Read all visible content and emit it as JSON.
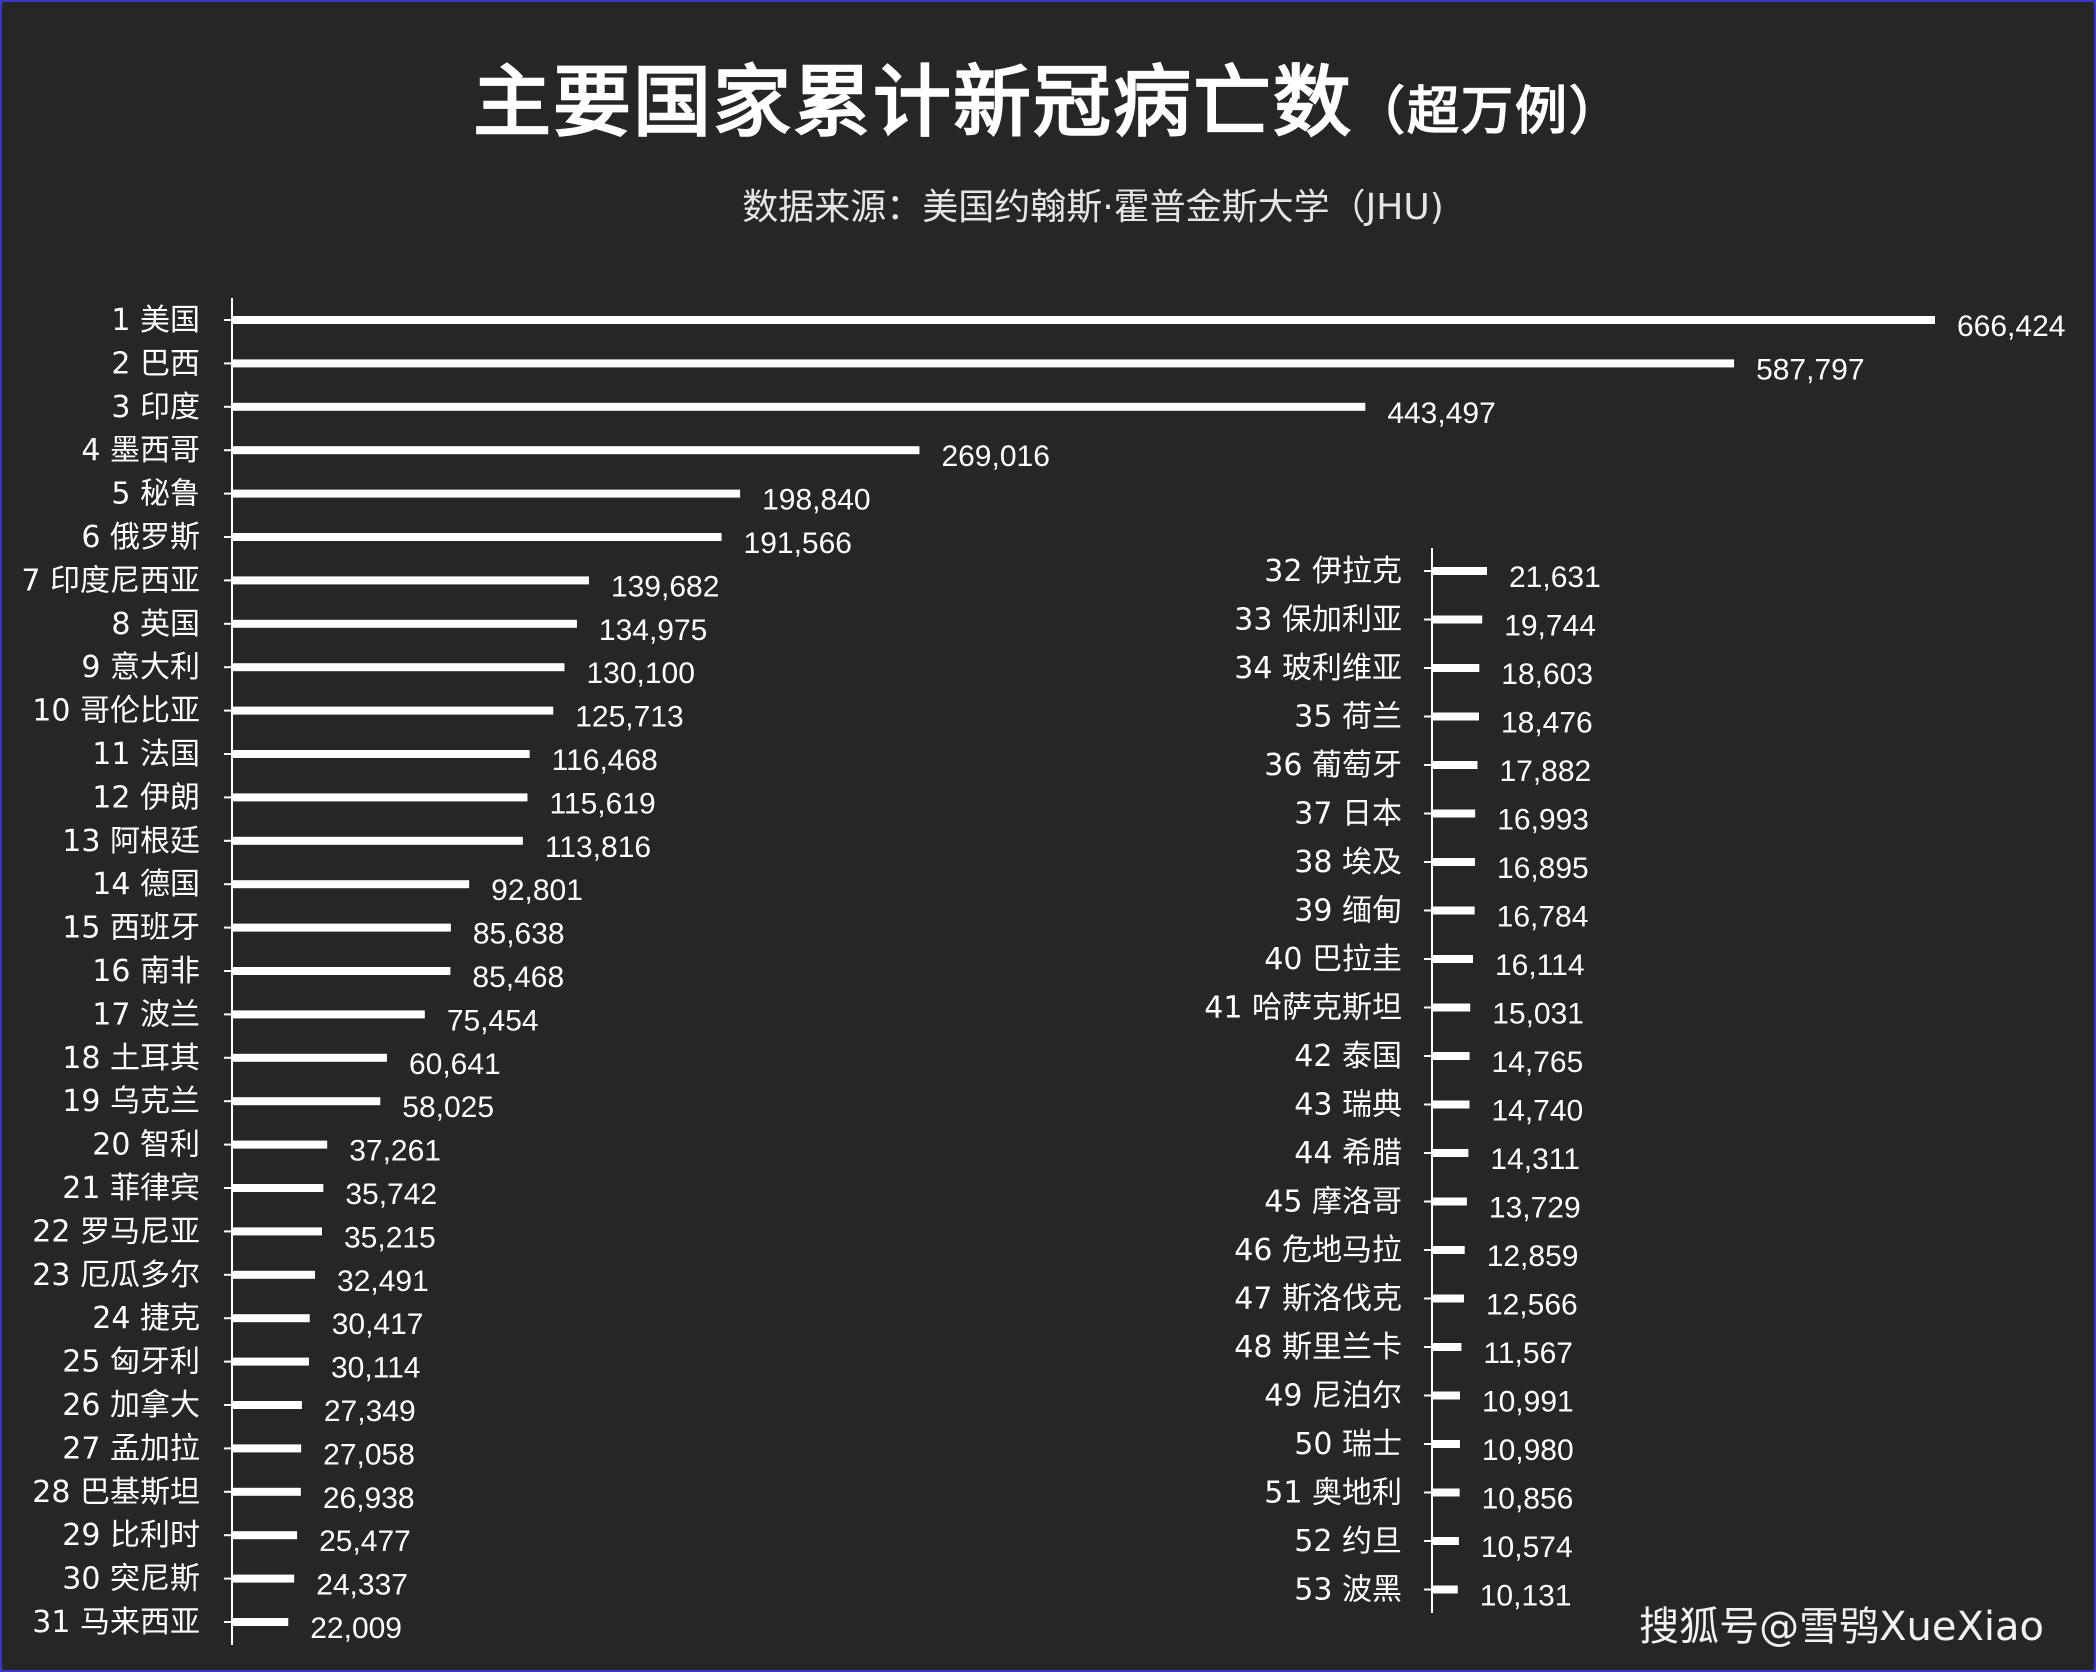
{
  "title": "主要国家累计新冠病亡数",
  "title_suffix": "（超万例）",
  "subtitle": "数据来源：美国约翰斯·霍普金斯大学（JHU)",
  "watermark": "搜狐号@雪鸮XueXiao",
  "colors": {
    "background": "#262626",
    "bar": "#ffffff",
    "text": "#ffffff",
    "border": "#3a36c8"
  },
  "chart_data": [
    {
      "type": "bar",
      "orientation": "horizontal",
      "title": "",
      "categories": [
        "1 美国",
        "2 巴西",
        "3 印度",
        "4 墨西哥",
        "5 秘鲁",
        "6 俄罗斯",
        "7 印度尼西亚",
        "8 英国",
        "9 意大利",
        "10 哥伦比亚",
        "11 法国",
        "12 伊朗",
        "13 阿根廷",
        "14 德国",
        "15 西班牙",
        "16 南非",
        "17 波兰",
        "18 土耳其",
        "19 乌克兰",
        "20 智利",
        "21 菲律宾",
        "22 罗马尼亚",
        "23 厄瓜多尔",
        "24 捷克",
        "25 匈牙利",
        "26 加拿大",
        "27 孟加拉",
        "28 巴基斯坦",
        "29 比利时",
        "30 突尼斯",
        "31 马来西亚"
      ],
      "values": [
        666424,
        587797,
        443497,
        269016,
        198840,
        191566,
        139682,
        134975,
        130100,
        125713,
        116468,
        115619,
        113816,
        92801,
        85638,
        85468,
        75454,
        60641,
        58025,
        37261,
        35742,
        35215,
        32491,
        30417,
        30114,
        27349,
        27058,
        26938,
        25477,
        24337,
        22009
      ],
      "value_labels": [
        "666,424",
        "587,797",
        "443,497",
        "269,016",
        "198,840",
        "191,566",
        "139,682",
        "134,975",
        "130,100",
        "125,713",
        "116,468",
        "115,619",
        "113,816",
        "92,801",
        "85,638",
        "85,468",
        "75,454",
        "60,641",
        "58,025",
        "37,261",
        "35,742",
        "35,215",
        "32,491",
        "30,417",
        "30,114",
        "27,349",
        "27,058",
        "26,938",
        "25,477",
        "24,337",
        "22,009"
      ],
      "grid": false,
      "legend": "none"
    },
    {
      "type": "bar",
      "orientation": "horizontal",
      "title": "",
      "categories": [
        "32 伊拉克",
        "33 保加利亚",
        "34 玻利维亚",
        "35 荷兰",
        "36 葡萄牙",
        "37 日本",
        "38 埃及",
        "39 缅甸",
        "40 巴拉圭",
        "41 哈萨克斯坦",
        "42 泰国",
        "43 瑞典",
        "44 希腊",
        "45 摩洛哥",
        "46 危地马拉",
        "47 斯洛伐克",
        "48 斯里兰卡",
        "49 尼泊尔",
        "50 瑞士",
        "51 奥地利",
        "52 约旦",
        "53 波黑"
      ],
      "values": [
        21631,
        19744,
        18603,
        18476,
        17882,
        16993,
        16895,
        16784,
        16114,
        15031,
        14765,
        14740,
        14311,
        13729,
        12859,
        12566,
        11567,
        10991,
        10980,
        10856,
        10574,
        10131
      ],
      "value_labels": [
        "21,631",
        "19,744",
        "18,603",
        "18,476",
        "17,882",
        "16,993",
        "16,895",
        "16,784",
        "16,114",
        "15,031",
        "14,765",
        "14,740",
        "14,311",
        "13,729",
        "12,859",
        "12,566",
        "11,567",
        "10,991",
        "10,980",
        "10,856",
        "10,574",
        "10,131"
      ],
      "grid": false,
      "legend": "none"
    }
  ]
}
